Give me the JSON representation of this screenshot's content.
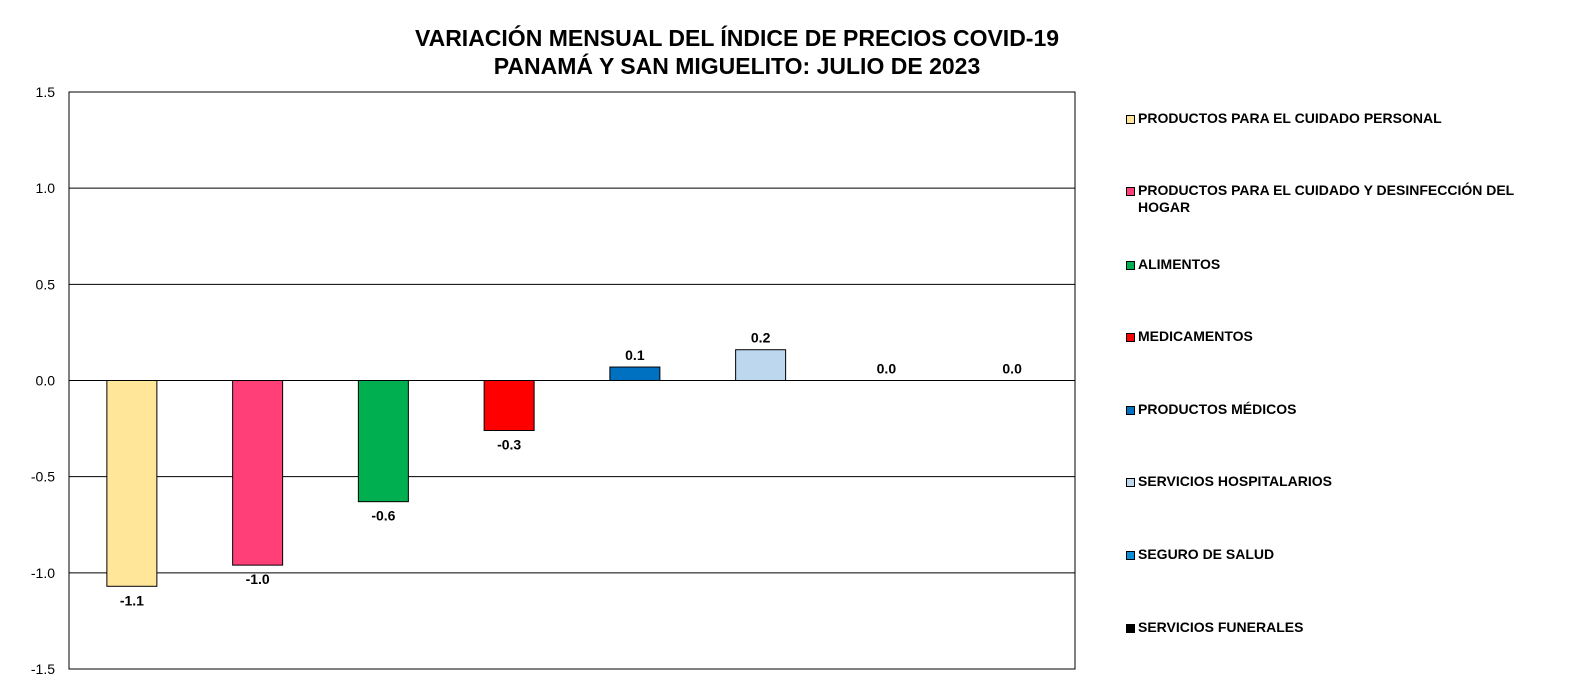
{
  "chart_data": {
    "type": "bar",
    "title_lines": [
      "VARIACIÓN MENSUAL DEL ÍNDICE DE PRECIOS COVID-19",
      "PANAMÁ Y SAN MIGUELITO: JULIO DE 2023"
    ],
    "xlabel": "",
    "ylabel": "",
    "ylim": [
      -1.5,
      1.5
    ],
    "yticks": [
      "1.5",
      "1.0",
      "0.5",
      "0.0",
      "-0.5",
      "-1.0",
      "-1.5"
    ],
    "ytick_values": [
      1.5,
      1.0,
      0.5,
      0.0,
      -0.5,
      -1.0,
      -1.5
    ],
    "grid": true,
    "legend_position": "right",
    "categories": [
      "PRODUCTOS PARA EL CUIDADO PERSONAL",
      "PRODUCTOS PARA EL CUIDADO Y DESINFECCIÓN DEL HOGAR",
      "ALIMENTOS",
      "MEDICAMENTOS",
      "PRODUCTOS MÉDICOS",
      "SERVICIOS HOSPITALARIOS",
      "SEGURO DE SALUD",
      "SERVICIOS FUNERALES"
    ],
    "values": [
      -1.07,
      -0.96,
      -0.63,
      -0.26,
      0.07,
      0.16,
      0.0,
      0.0
    ],
    "data_labels": [
      "-1.1",
      "-1.0",
      "-0.6",
      "-0.3",
      "0.1",
      "0.2",
      "0.0",
      "0.0"
    ],
    "colors": [
      "#FFE699",
      "#FF3F77",
      "#00B050",
      "#FF0000",
      "#0070C0",
      "#BDD7EE",
      "#0B8FD9",
      "#000000"
    ]
  }
}
